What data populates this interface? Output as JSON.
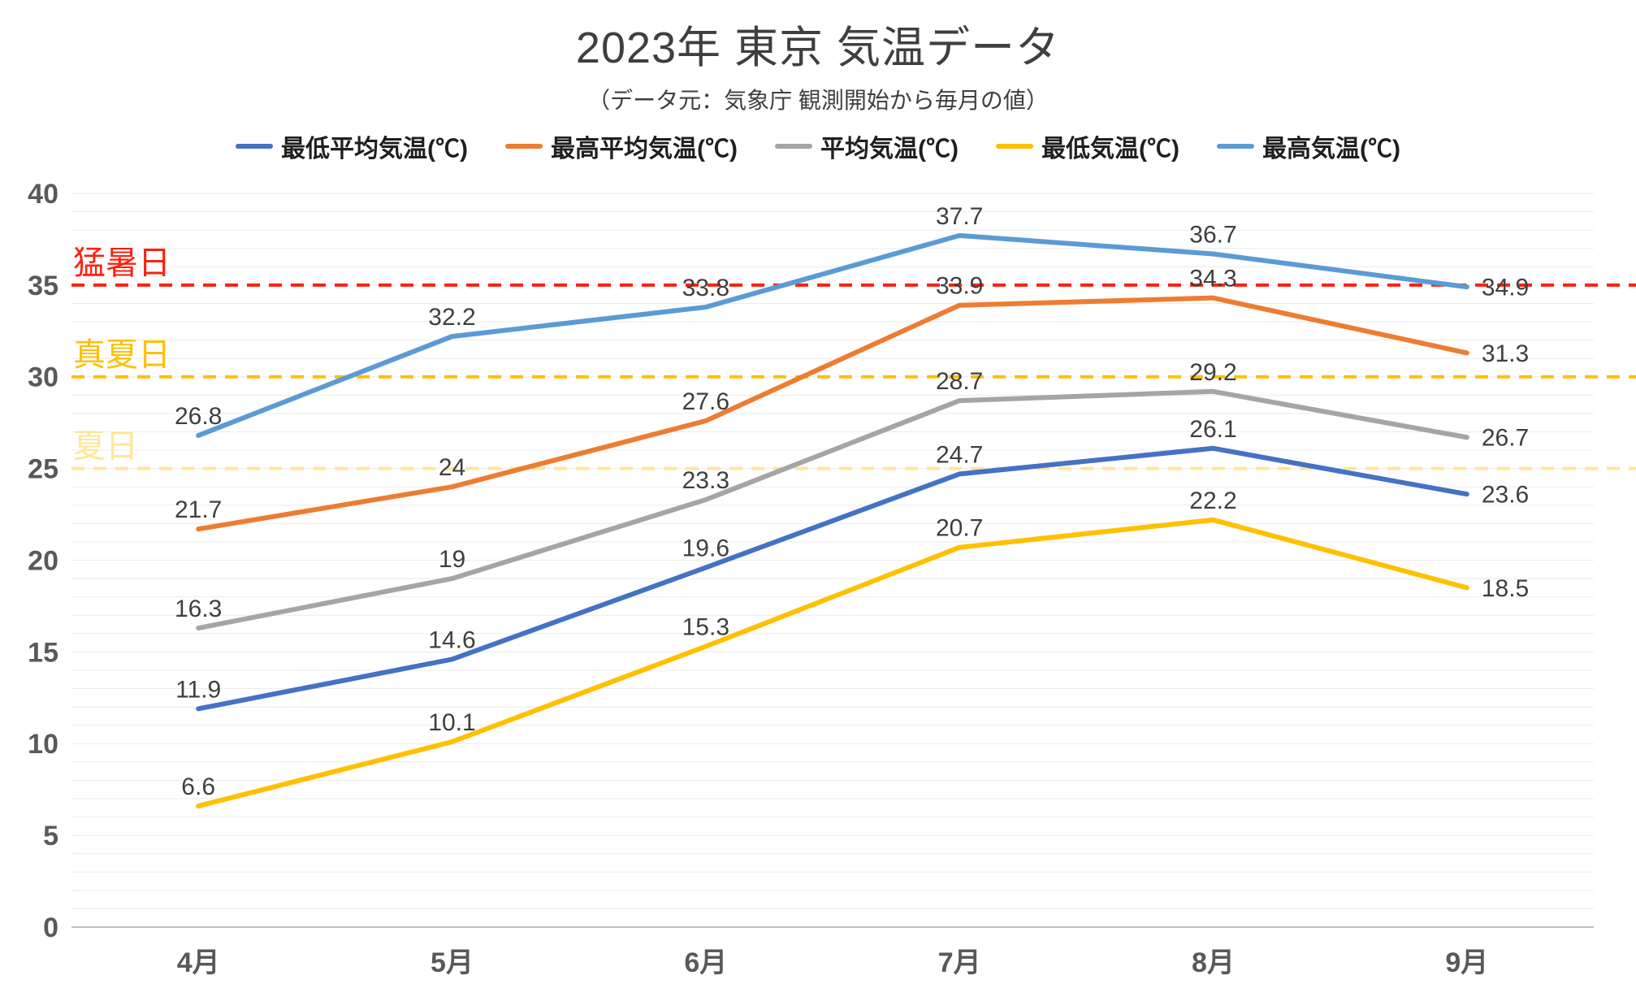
{
  "title": "2023年 東京 気温データ",
  "subtitle": "（データ元：気象庁 観測開始から毎月の値）",
  "chart_data": {
    "type": "line",
    "title": "2023年 東京 気温データ",
    "subtitle": "（データ元：気象庁 観測開始から毎月の値）",
    "categories": [
      "4月",
      "5月",
      "6月",
      "7月",
      "8月",
      "9月"
    ],
    "series": [
      {
        "name": "最低平均気温(℃)",
        "color": "#4472C4",
        "values": [
          11.9,
          14.6,
          19.6,
          24.7,
          26.1,
          23.6
        ]
      },
      {
        "name": "最高平均気温(℃)",
        "color": "#ED7D31",
        "values": [
          21.7,
          24,
          27.6,
          33.9,
          34.3,
          31.3
        ]
      },
      {
        "name": "平均気温(℃)",
        "color": "#A5A5A5",
        "values": [
          16.3,
          19,
          23.3,
          28.7,
          29.2,
          26.7
        ]
      },
      {
        "name": "最低気温(℃)",
        "color": "#FFC000",
        "values": [
          6.6,
          10.1,
          15.3,
          20.7,
          22.2,
          18.5
        ]
      },
      {
        "name": "最高気温(℃)",
        "color": "#5B9BD5",
        "values": [
          26.8,
          32.2,
          33.8,
          37.7,
          36.7,
          34.9
        ]
      }
    ],
    "reference_lines": [
      {
        "label": "猛暑日",
        "value": 35,
        "color": "#FF1F0F"
      },
      {
        "label": "真夏日",
        "value": 30,
        "color": "#FFC000"
      },
      {
        "label": "夏日",
        "value": 25,
        "color": "#FFE699"
      }
    ],
    "xlabel": "",
    "ylabel": "",
    "ylim": [
      0,
      40
    ],
    "ytick_step": 5,
    "grid_step": 1,
    "grid": true,
    "legend_position": "top",
    "axis_label_color": "#595959",
    "data_label_color": "#3f3f3f"
  }
}
